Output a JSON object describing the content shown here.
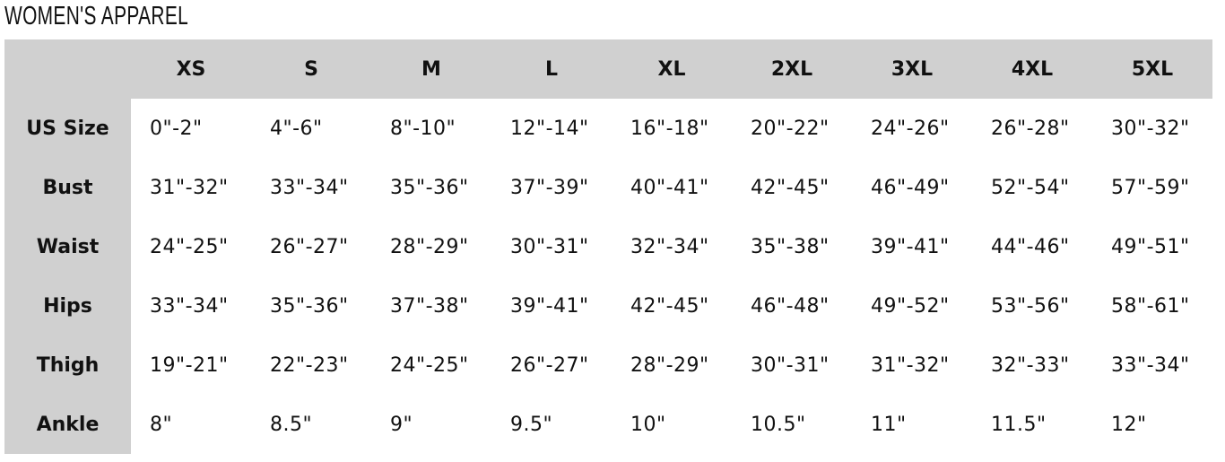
{
  "title": "WOMEN'S APPAREL",
  "table": {
    "columns": [
      "XS",
      "S",
      "M",
      "L",
      "XL",
      "2XL",
      "3XL",
      "4XL",
      "5XL"
    ],
    "rows": [
      {
        "label": "US Size",
        "cells": [
          "0\"-2\"",
          "4\"-6\"",
          "8\"-10\"",
          "12\"-14\"",
          "16\"-18\"",
          "20\"-22\"",
          "24\"-26\"",
          "26\"-28\"",
          "30\"-32\""
        ]
      },
      {
        "label": "Bust",
        "cells": [
          "31\"-32\"",
          "33\"-34\"",
          "35\"-36\"",
          "37\"-39\"",
          "40\"-41\"",
          "42\"-45\"",
          "46\"-49\"",
          "52\"-54\"",
          "57\"-59\""
        ]
      },
      {
        "label": "Waist",
        "cells": [
          "24\"-25\"",
          "26\"-27\"",
          "28\"-29\"",
          "30\"-31\"",
          "32\"-34\"",
          "35\"-38\"",
          "39\"-41\"",
          "44\"-46\"",
          "49\"-51\""
        ]
      },
      {
        "label": "Hips",
        "cells": [
          "33\"-34\"",
          "35\"-36\"",
          "37\"-38\"",
          "39\"-41\"",
          "42\"-45\"",
          "46\"-48\"",
          "49\"-52\"",
          "53\"-56\"",
          "58\"-61\""
        ]
      },
      {
        "label": "Thigh",
        "cells": [
          "19\"-21\"",
          "22\"-23\"",
          "24\"-25\"",
          "26\"-27\"",
          "28\"-29\"",
          "30\"-31\"",
          "31\"-32\"",
          "32\"-33\"",
          "33\"-34\""
        ]
      },
      {
        "label": "Ankle",
        "cells": [
          "8\"",
          "8.5\"",
          "9\"",
          "9.5\"",
          "10\"",
          "10.5\"",
          "11\"",
          "11.5\"",
          "12\""
        ]
      }
    ]
  }
}
